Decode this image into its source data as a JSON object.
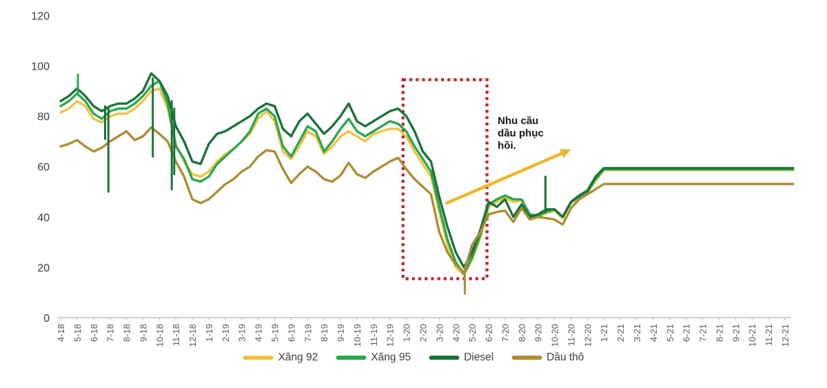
{
  "chart_data": {
    "type": "line",
    "title": "",
    "xlabel": "",
    "ylabel": "",
    "ylim": [
      0,
      120
    ],
    "y_ticks": [
      0,
      20,
      40,
      60,
      80,
      100,
      120
    ],
    "grid": false,
    "background": "#ffffff",
    "axis_color": "#bfbfbf",
    "x_tick_labels": [
      "4-18",
      "5-18",
      "6-18",
      "7-18",
      "8-18",
      "9-18",
      "10-18",
      "11-18",
      "12-18",
      "1-19",
      "2-19",
      "3-19",
      "4-19",
      "5-19",
      "6-19",
      "7-19",
      "8-19",
      "9-19",
      "10-19",
      "11-19",
      "12-19",
      "1-20",
      "2-20",
      "3-20",
      "4-20",
      "5-20",
      "6-20",
      "7-20",
      "8-20",
      "9-20",
      "10-20",
      "11-20",
      "12-20",
      "1-21",
      "2-21",
      "3-21",
      "4-21",
      "5-21",
      "6-21",
      "7-21",
      "8-21",
      "9-21",
      "10-21",
      "11-21",
      "12-21"
    ],
    "x_month_index_step": 0.5,
    "series": [
      {
        "name": "Xăng 92",
        "key": "xang92",
        "color": "#f0c243",
        "values": [
          81.5,
          83,
          86,
          84,
          79,
          77.5,
          80,
          81,
          81,
          83,
          86,
          90,
          91,
          83,
          69,
          62,
          57,
          56,
          58,
          62,
          65,
          67,
          70,
          73,
          79,
          82,
          78,
          66,
          63,
          68,
          74,
          72,
          65,
          68,
          72,
          74,
          72,
          70,
          73,
          74,
          75,
          75,
          72,
          66,
          61,
          56,
          42,
          29,
          20,
          17,
          23,
          32,
          44,
          46,
          47.5,
          46,
          46.5,
          40,
          40,
          41.5,
          42.5,
          39.5,
          45.5,
          47.5,
          49.5,
          54.5,
          58.6,
          58.6,
          58.6,
          58.6,
          58.6,
          58.6,
          58.6,
          58.6,
          58.6,
          58.6,
          58.6,
          58.6,
          58.6,
          58.6,
          58.6,
          58.6,
          58.6,
          58.6,
          58.6,
          58.6,
          58.6,
          58.6,
          58.6,
          58.6
        ]
      },
      {
        "name": "Xăng 95",
        "key": "xang95",
        "color": "#2aa74d",
        "values": [
          84,
          86,
          89,
          86,
          81,
          79,
          82,
          83,
          83,
          85,
          88,
          92,
          94,
          85,
          68,
          63,
          55,
          54,
          56,
          61,
          64,
          67,
          70,
          74,
          81,
          83,
          80,
          68,
          64,
          70,
          76,
          74,
          66,
          70,
          75,
          79,
          74,
          72,
          74,
          76,
          78,
          77,
          74,
          68,
          63,
          58,
          44,
          31,
          22,
          17.5,
          24,
          33,
          45,
          47,
          48.5,
          47,
          47,
          41,
          40.5,
          42,
          43,
          40,
          46,
          48,
          50,
          55,
          58.9,
          58.9,
          58.9,
          58.9,
          58.9,
          58.9,
          58.9,
          58.9,
          58.9,
          58.9,
          58.9,
          58.9,
          58.9,
          58.9,
          58.9,
          58.9,
          58.9,
          58.9,
          58.9,
          58.9,
          58.9,
          58.9,
          58.9,
          58.9
        ]
      },
      {
        "name": "Diesel",
        "key": "diesel",
        "color": "#1a7239",
        "values": [
          86,
          88,
          91,
          88,
          84,
          82,
          84,
          85,
          85,
          87,
          90,
          97,
          94,
          88,
          76,
          70,
          62,
          61,
          69,
          73,
          74,
          76,
          78,
          80,
          83,
          85,
          84,
          75,
          72,
          78,
          81,
          77,
          73,
          76,
          80,
          85,
          78,
          76,
          78,
          80,
          82,
          83,
          80,
          74,
          66,
          62,
          48,
          36,
          26,
          20,
          26,
          35,
          46,
          44,
          47,
          40,
          45,
          40,
          41,
          43,
          43,
          40,
          46,
          48.5,
          50.5,
          56,
          59.4,
          59.4,
          59.4,
          59.4,
          59.4,
          59.4,
          59.4,
          59.4,
          59.4,
          59.4,
          59.4,
          59.4,
          59.4,
          59.4,
          59.4,
          59.4,
          59.4,
          59.4,
          59.4,
          59.4,
          59.4,
          59.4,
          59.4,
          59.4
        ]
      },
      {
        "name": "Dầu thô",
        "key": "dautho",
        "color": "#ad8c33",
        "values": [
          68,
          69,
          70.5,
          68,
          66,
          67.5,
          70,
          72,
          74,
          70.5,
          72,
          75.5,
          73,
          70,
          62,
          56,
          47,
          45.5,
          47,
          50,
          53,
          55,
          58,
          60,
          64,
          66.5,
          66,
          59,
          53.5,
          57,
          60,
          58,
          55,
          54,
          56.5,
          61.5,
          57,
          55.5,
          58,
          60,
          62,
          63.5,
          59,
          55,
          52,
          49,
          34,
          26,
          21,
          18,
          29,
          34,
          41,
          42,
          42.5,
          38,
          43.5,
          39,
          40,
          39.5,
          39,
          37,
          43.5,
          47,
          49,
          51,
          53.1,
          53.1,
          53.1,
          53.1,
          53.1,
          53.1,
          53.1,
          53.1,
          53.1,
          53.1,
          53.1,
          53.1,
          53.1,
          53.1,
          53.1,
          53.1,
          53.1,
          53.1,
          53.1,
          53.1,
          53.1,
          53.1,
          53.1,
          53.1
        ]
      }
    ],
    "spikes": [
      {
        "series": "xang95",
        "month_index": 1.05,
        "from": 89,
        "to": 96.5
      },
      {
        "series": "diesel",
        "month_index": 2.7,
        "from": 84,
        "to": 71
      },
      {
        "series": "diesel",
        "month_index": 2.9,
        "from": 83,
        "to": 50
      },
      {
        "series": "diesel",
        "month_index": 5.6,
        "from": 95,
        "to": 64
      },
      {
        "series": "diesel",
        "month_index": 6.75,
        "from": 86,
        "to": 51
      },
      {
        "series": "diesel",
        "month_index": 6.9,
        "from": 83,
        "to": 57
      },
      {
        "series": "diesel",
        "month_index": 29.45,
        "from": 42,
        "to": 56
      },
      {
        "series": "dautho",
        "month_index": 24.55,
        "from": 18,
        "to": 9.5
      }
    ],
    "highlight_box": {
      "from_month_index": 20.8,
      "to_month_index": 25.9,
      "from_value": 15.5,
      "to_value": 94.5,
      "color": "#c1222b",
      "style": "dotted"
    },
    "arrow": {
      "from_month_index": 23.45,
      "from_value": 45.5,
      "to_month_index": 31.0,
      "to_value": 66.8,
      "color": "#f2b42c"
    },
    "annotation": {
      "text": "Nhu cầu dầu phục hồi.",
      "month_index": 26.55,
      "value": 80.5,
      "color": "#16161d"
    },
    "legend": {
      "position": "bottom",
      "items": [
        "Xăng 92",
        "Xăng 95",
        "Diesel",
        "Dầu thô"
      ]
    }
  }
}
